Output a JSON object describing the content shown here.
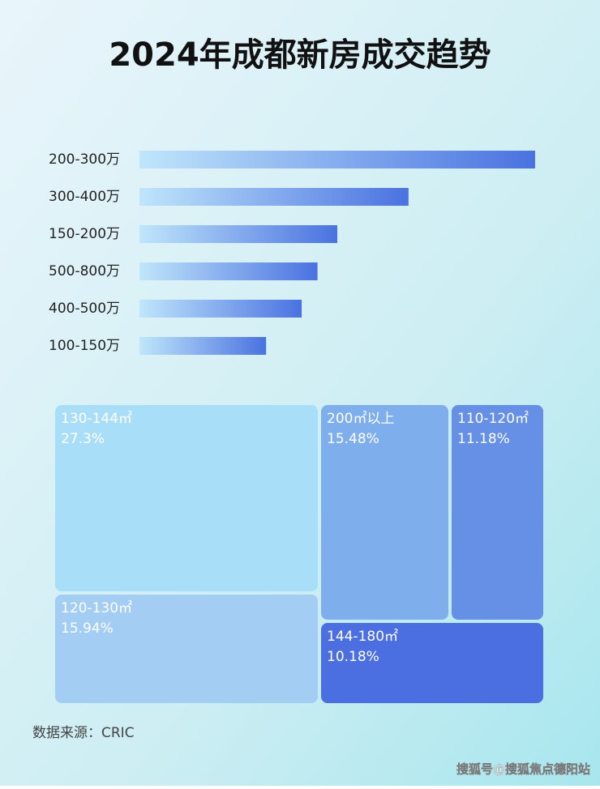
{
  "chart_data": [
    {
      "type": "bar",
      "title": "2024年成都新房成交趋势",
      "orientation": "horizontal",
      "categories": [
        "200-300万",
        "300-400万",
        "150-200万",
        "500-800万",
        "400-500万",
        "100-150万"
      ],
      "values": [
        100,
        68,
        50,
        45,
        41,
        32
      ],
      "color": "#4a72e0"
    },
    {
      "type": "treemap",
      "categories": [
        "130-144㎡",
        "200㎡以上",
        "110-120㎡",
        "120-130㎡",
        "144-180㎡"
      ],
      "values": [
        27.3,
        15.48,
        11.18,
        15.94,
        10.18
      ],
      "value_labels": [
        "27.3%",
        "15.48%",
        "11.18%",
        "15.94%",
        "10.18%"
      ],
      "colors": [
        "#a9def8",
        "#7eaeec",
        "#6590e6",
        "#a3cdf3",
        "#4b6fe0"
      ]
    }
  ],
  "source": "数据来源：CRIC",
  "watermark": "搜狐号@搜狐焦点德阳站"
}
